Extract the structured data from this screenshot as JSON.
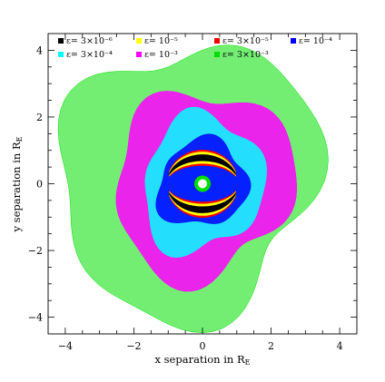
{
  "chart_data": {
    "type": "scatter",
    "title": "",
    "xlabel": "x separation in R",
    "xlabel_sub": "E",
    "ylabel": "y separation in R",
    "ylabel_sub": "E",
    "xlim": [
      -4.5,
      4.5
    ],
    "ylim": [
      -4.5,
      4.5
    ],
    "xticks": [
      -4,
      -2,
      0,
      2,
      4
    ],
    "yticks": [
      -4,
      -2,
      0,
      2,
      4
    ],
    "xtick_labels": [
      "−4",
      "−2",
      "0",
      "2",
      "4"
    ],
    "ytick_labels": [
      "−4",
      "−2",
      "0",
      "2",
      "4"
    ],
    "grid": false,
    "legend_position": "top",
    "series": [
      {
        "name": "ε= 3×10⁻⁶",
        "color": "#000000",
        "region": {
          "shape": "arcs",
          "r_x": 0.95,
          "r_y": 0.78,
          "width": 0.2
        }
      },
      {
        "name": "ε= 10⁻⁵",
        "color": "#ffff00",
        "region": {
          "shape": "arcs",
          "r_x": 0.95,
          "r_y": 0.78,
          "width": 0.36
        }
      },
      {
        "name": "ε= 3×10⁻⁵",
        "color": "#ff0000",
        "region": {
          "shape": "arcs",
          "r_x": 0.95,
          "r_y": 0.78,
          "width": 0.48
        }
      },
      {
        "name": "ε= 10⁻⁴",
        "color": "#0000ff",
        "region": {
          "shape": "ring",
          "r_x": 1.3,
          "r_y": 1.3,
          "inner": 0.55
        }
      },
      {
        "name": "ε= 3×10⁻⁴",
        "color": "#00ffff",
        "region": {
          "shape": "ring",
          "r_x": 1.75,
          "r_y": 2.05,
          "inner": 0.55
        }
      },
      {
        "name": "ε= 10⁻³",
        "color": "#ff00ff",
        "region": {
          "shape": "ring",
          "r_x": 2.6,
          "r_y": 2.8,
          "inner": 0.55
        }
      },
      {
        "name": "ε= 3×10⁻³",
        "color": "#00e000",
        "region": {
          "shape": "ring",
          "r_x": 3.75,
          "r_y": 4.1,
          "inner": 0.0
        }
      }
    ]
  }
}
